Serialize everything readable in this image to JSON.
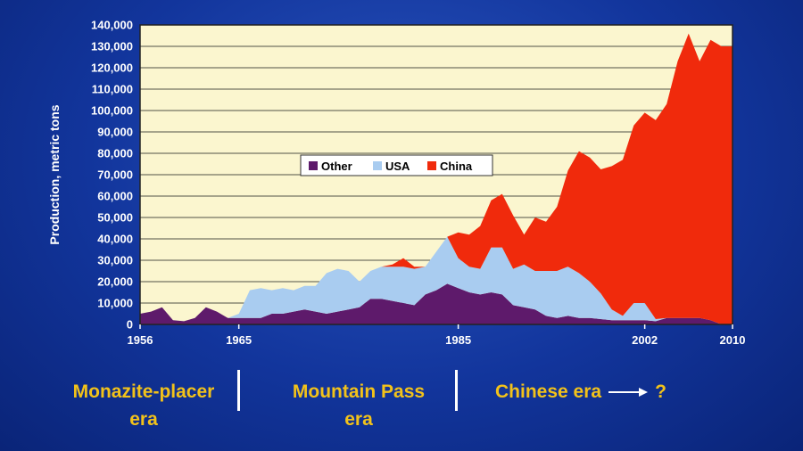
{
  "chart_data": {
    "type": "area",
    "stacked": true,
    "title": "",
    "xlabel": "",
    "ylabel": "Production, metric tons",
    "xlim": [
      1956,
      2010
    ],
    "ylim": [
      0,
      140000
    ],
    "x_tick_labels": [
      "1956",
      "1965",
      "1985",
      "2002",
      "2010"
    ],
    "y_tick_labels": [
      "0",
      "10,000",
      "20,000",
      "30,000",
      "40,000",
      "50,000",
      "60,000",
      "70,000",
      "80,000",
      "90,000",
      "100,000",
      "110,000",
      "120,000",
      "130,000",
      "140,000"
    ],
    "grid": "horizontal",
    "legend": "center-left, inside plot",
    "colors": {
      "Other": "#5e1a6b",
      "USA": "#a9ccf0",
      "China": "#f02a0c",
      "plot_bg": "#fbf6cf"
    },
    "x": [
      1956,
      1957,
      1958,
      1959,
      1960,
      1961,
      1962,
      1963,
      1964,
      1965,
      1966,
      1967,
      1968,
      1969,
      1970,
      1971,
      1972,
      1973,
      1974,
      1975,
      1976,
      1977,
      1978,
      1979,
      1980,
      1981,
      1982,
      1983,
      1984,
      1985,
      1986,
      1987,
      1988,
      1989,
      1990,
      1991,
      1992,
      1993,
      1994,
      1995,
      1996,
      1997,
      1998,
      1999,
      2000,
      2001,
      2002,
      2003,
      2004,
      2005,
      2006,
      2007,
      2008,
      2009,
      2010
    ],
    "series": [
      {
        "name": "Other",
        "values": [
          5000,
          6000,
          8000,
          2000,
          1500,
          3000,
          8000,
          6000,
          3000,
          3000,
          3000,
          3000,
          5000,
          5000,
          6000,
          7000,
          6000,
          5000,
          6000,
          7000,
          8000,
          12000,
          12000,
          11000,
          10000,
          9000,
          14000,
          16000,
          19000,
          17000,
          15000,
          14000,
          15000,
          14000,
          9000,
          8000,
          7000,
          4000,
          3000,
          4000,
          3000,
          3000,
          2500,
          2000,
          2000,
          2000,
          2000,
          1500,
          3000,
          3000,
          3000,
          3000,
          2000,
          0,
          0
        ]
      },
      {
        "name": "USA",
        "values": [
          0,
          0,
          0,
          0,
          0,
          0,
          0,
          0,
          0,
          2000,
          13000,
          14000,
          11000,
          12000,
          10000,
          11000,
          12000,
          19000,
          20000,
          18000,
          12000,
          13000,
          15000,
          16000,
          17000,
          17000,
          13000,
          18000,
          22000,
          14000,
          12000,
          12000,
          21000,
          22000,
          17000,
          20000,
          18000,
          21000,
          22000,
          23000,
          21000,
          17000,
          12000,
          5000,
          2000,
          8000,
          8000,
          1000,
          0,
          0,
          0,
          0,
          0,
          0,
          0
        ]
      },
      {
        "name": "China",
        "values": [
          0,
          0,
          0,
          0,
          0,
          0,
          0,
          0,
          0,
          0,
          0,
          0,
          0,
          0,
          0,
          0,
          0,
          0,
          0,
          0,
          0,
          0,
          0,
          1000,
          4000,
          1000,
          0,
          0,
          0,
          12000,
          15000,
          20000,
          22000,
          25000,
          25000,
          14000,
          25000,
          23000,
          30000,
          45000,
          57000,
          58000,
          58000,
          67000,
          73000,
          83000,
          89000,
          93000,
          100000,
          120000,
          133000,
          120000,
          131000,
          130000,
          130000
        ]
      }
    ]
  },
  "eras": {
    "monazite": {
      "line1": "Monazite-placer",
      "line2": "era"
    },
    "mountain_pass": {
      "line1": "Mountain Pass",
      "line2": "era"
    },
    "chinese": {
      "text": "Chinese era",
      "question": "?"
    }
  }
}
